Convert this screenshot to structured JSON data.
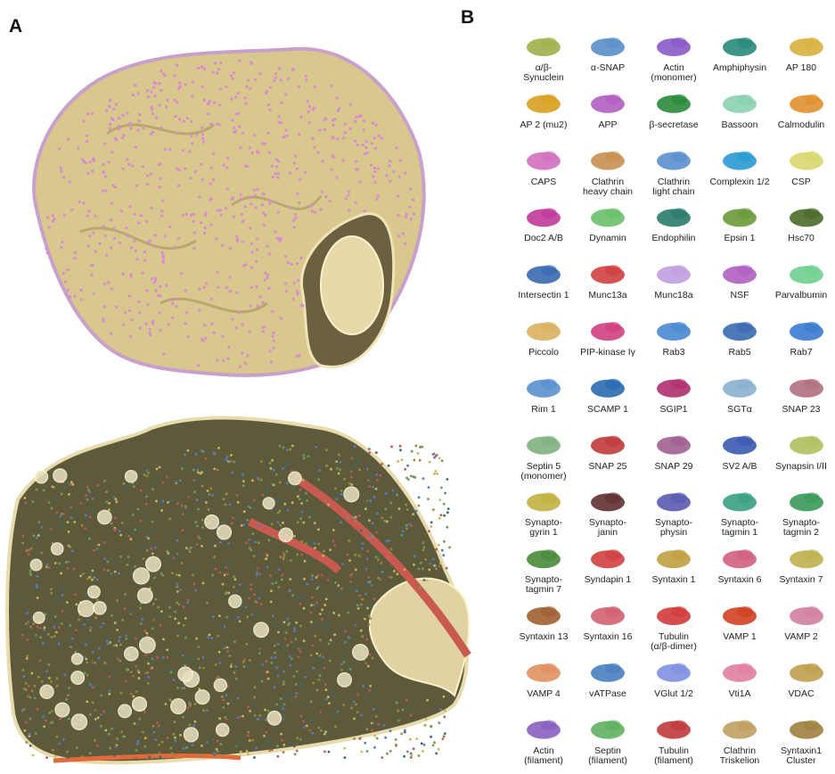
{
  "panels": {
    "a": {
      "letter": "A"
    },
    "b": {
      "letter": "B"
    }
  },
  "proteins": [
    "α/β-\nSynuclein",
    "α-SNAP",
    "Actin\n(monomer)",
    "Amphiphysin",
    "AP 180",
    "AP 2 (mu2)",
    "APP",
    "β-secretase",
    "Bassoon",
    "Calmodulin",
    "CAPS",
    "Clathrin\nheavy chain",
    "Clathrin\nlight chain",
    "Complexin 1/2",
    "CSP",
    "Doc2 A/B",
    "Dynamin",
    "Endophilin",
    "Epsin 1",
    "Hsc70",
    "Intersectin 1",
    "Munc13a",
    "Munc18a",
    "NSF",
    "Parvalbumin",
    "Piccolo",
    "PIP-kinase Iγ",
    "Rab3",
    "Rab5",
    "Rab7",
    "Rim 1",
    "SCAMP 1",
    "SGIP1",
    "SGTα",
    "SNAP 23",
    "Septin 5\n(monomer)",
    "SNAP 25",
    "SNAP 29",
    "SV2 A/B",
    "Synapsin I/II",
    "Synapto-\ngyrin 1",
    "Synapto-\njanin",
    "Synapto-\nphysin",
    "Synapto-\ntagmin 1",
    "Synapto-\ntagmin 2",
    "Synapto-\ntagmin 7",
    "Syndapin 1",
    "Syntaxin 1",
    "Syntaxin 6",
    "Syntaxin 7",
    "Syntaxin 13",
    "Syntaxin 16",
    "Tubulin\n(α/β-dimer)",
    "VAMP 1",
    "VAMP 2",
    "VAMP 4",
    "vATPase",
    "VGlut 1/2",
    "Vti1A",
    "VDAC",
    "Actin\n(filament)",
    "Septin\n(filament)",
    "Tubulin\n(filament)",
    "Clathrin\nTriskelion",
    "Syntaxin1\nCluster"
  ]
}
